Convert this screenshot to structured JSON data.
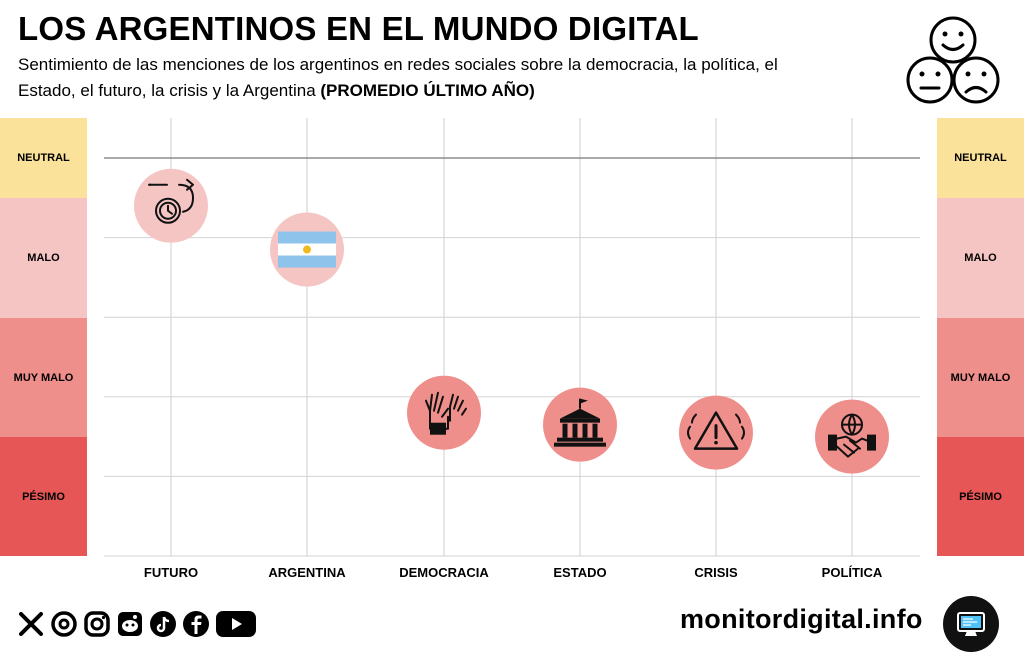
{
  "header": {
    "title": "LOS ARGENTINOS EN EL MUNDO DIGITAL",
    "subtitle": "Sentimiento de las menciones de los argentinos en redes sociales sobre la democracia, la política, el Estado, el futuro, la crisis y la Argentina",
    "subtitle_bold": "(PROMEDIO ÚLTIMO AÑO)"
  },
  "scale": [
    {
      "label": "NEUTRAL",
      "color": "#fbe29a"
    },
    {
      "label": "MALO",
      "color": "#f5c5c4"
    },
    {
      "label": "MUY MALO",
      "color": "#ef8f8c"
    },
    {
      "label": "PÉSIMO",
      "color": "#e75656"
    }
  ],
  "chart_data": {
    "type": "scatter",
    "title": "LOS ARGENTINOS EN EL MUNDO DIGITAL",
    "categories": [
      "FUTURO",
      "ARGENTINA",
      "DEMOCRACIA",
      "ESTADO",
      "CRISIS",
      "POLÍTICA"
    ],
    "values": [
      -0.6,
      -1.15,
      -3.2,
      -3.35,
      -3.45,
      -3.5
    ],
    "value_scale_note_levels": [
      "NEUTRAL",
      "MALO",
      "MUY MALO",
      "PÉSIMO"
    ],
    "ylim": [
      -5,
      0
    ],
    "icons": [
      "clock-arrow-icon",
      "argentina-flag-icon",
      "raised-hands-icon",
      "government-building-icon",
      "warning-icon",
      "handshake-globe-icon"
    ],
    "marker_colors": [
      "#f5c5c4",
      "#f5c5c4",
      "#ef8f8c",
      "#ef8f8c",
      "#ef8f8c",
      "#ef8f8c"
    ],
    "grid": true,
    "reference_line": 0
  },
  "footer": {
    "brand": "monitordigital.info",
    "social_icons": [
      "x-icon",
      "threads-icon",
      "instagram-icon",
      "reddit-icon",
      "tiktok-icon",
      "facebook-icon",
      "youtube-icon"
    ]
  }
}
